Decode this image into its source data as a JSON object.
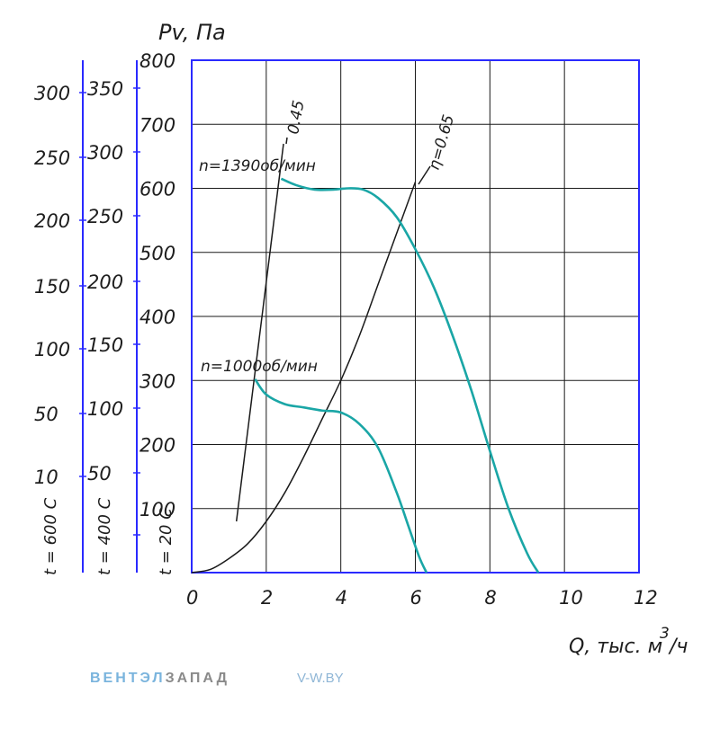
{
  "chart_data": {
    "type": "line",
    "ylabel": "Pv, Па",
    "xlabel": "Q, тыс. м",
    "xlabel_sup": "3",
    "xlabel_suffix": "/ч",
    "xlim": [
      0,
      12
    ],
    "ylim": [
      0,
      800
    ],
    "xticks": [
      "0",
      "2",
      "4",
      "6",
      "8",
      "10",
      "12"
    ],
    "yticks": [
      "100",
      "200",
      "300",
      "400",
      "500",
      "600",
      "700",
      "800"
    ],
    "grid": true,
    "colors": {
      "fan_curve": "#1aa6a6",
      "grid": "#1a1a1a",
      "frame": "#2a2aff",
      "aux_axis": "#2a2aff",
      "eff_line": "#1a1a1a"
    },
    "series": [
      {
        "name": "n=1390об/мин",
        "x": [
          2.4,
          2.8,
          3.3,
          3.8,
          4.2,
          4.6,
          5.0,
          5.5,
          6.0,
          6.5,
          7.0,
          7.5,
          8.0,
          8.5,
          9.0,
          9.3
        ],
        "y": [
          615,
          605,
          598,
          598,
          600,
          598,
          585,
          555,
          505,
          445,
          370,
          285,
          190,
          100,
          30,
          0
        ]
      },
      {
        "name": "n=1000об/мин",
        "x": [
          1.7,
          2.0,
          2.5,
          3.0,
          3.5,
          4.0,
          4.5,
          5.0,
          5.5,
          5.8,
          6.1,
          6.3
        ],
        "y": [
          302,
          278,
          263,
          258,
          253,
          250,
          232,
          195,
          125,
          75,
          25,
          0
        ]
      }
    ],
    "system_curve": {
      "x": [
        0,
        0.5,
        1.0,
        1.5,
        2.0,
        2.5,
        3.0,
        3.5,
        4.0,
        4.5,
        5.0,
        5.5,
        6.0
      ],
      "y": [
        0,
        5,
        22,
        45,
        80,
        125,
        180,
        240,
        300,
        370,
        450,
        530,
        610
      ]
    },
    "efficiency_lines": [
      {
        "label": "0.45",
        "x": [
          1.2,
          2.45
        ],
        "y": [
          80,
          600
        ]
      },
      {
        "label": "η=0.65",
        "x": [
          6.05,
          6.05
        ],
        "y": [
          610,
          610
        ]
      }
    ],
    "aux_axes": [
      {
        "title": "t = 600 С",
        "ticks": [
          "10",
          "50",
          "100",
          "150",
          "200",
          "250",
          "300"
        ]
      },
      {
        "title": "t = 400 С",
        "ticks": [
          "50",
          "100",
          "150",
          "200",
          "250",
          "300",
          "350"
        ]
      },
      {
        "title": "t = 20 С",
        "ticks": []
      }
    ]
  },
  "footer": {
    "brand_part1": "ВЕНТЭЛ",
    "brand_part2": "ЗАПАД",
    "site": "V-W.BY"
  }
}
